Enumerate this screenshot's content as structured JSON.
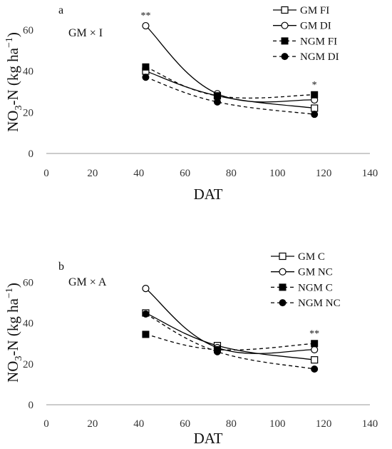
{
  "chart_data": [
    {
      "type": "line",
      "panel_letter": "a",
      "panel_label": "GM × I",
      "xlabel": "DAT",
      "ylabel": {
        "main": "NO",
        "sub": "3",
        "mid": "-N (kg ha",
        "sup": "−1",
        "end": ")"
      },
      "xlim": [
        0,
        140
      ],
      "ylim": [
        0,
        70
      ],
      "xticks": [
        0,
        20,
        40,
        60,
        80,
        100,
        120,
        140
      ],
      "yticks": [
        0,
        20,
        40,
        60
      ],
      "grid": false,
      "legend_position": "top-right",
      "x": [
        43,
        74,
        116
      ],
      "series": [
        {
          "name": "GM FI",
          "values": [
            40,
            28,
            22
          ],
          "marker": "square-open",
          "line": "solid"
        },
        {
          "name": "GM DI",
          "values": [
            62,
            29,
            26
          ],
          "marker": "circle-open",
          "line": "solid"
        },
        {
          "name": "NGM FI",
          "values": [
            42,
            28,
            28.5
          ],
          "marker": "square-filled",
          "line": "dashed"
        },
        {
          "name": "NGM DI",
          "values": [
            37,
            25,
            19
          ],
          "marker": "circle-filled",
          "line": "dashed"
        }
      ],
      "annotations": [
        {
          "text": "**",
          "x": 43,
          "y": 62
        },
        {
          "text": "*",
          "x": 116,
          "y": 28.5
        }
      ]
    },
    {
      "type": "line",
      "panel_letter": "b",
      "panel_label": "GM × A",
      "xlabel": "DAT",
      "ylabel": {
        "main": "NO",
        "sub": "3",
        "mid": "-N (kg ha",
        "sup": "−1",
        "end": ")"
      },
      "xlim": [
        0,
        140
      ],
      "ylim": [
        0,
        70
      ],
      "xticks": [
        0,
        20,
        40,
        60,
        80,
        100,
        120,
        140
      ],
      "yticks": [
        0,
        20,
        40,
        60
      ],
      "grid": false,
      "legend_position": "top-right",
      "x": [
        43,
        74,
        116
      ],
      "series": [
        {
          "name": "GM C",
          "values": [
            45,
            29,
            22
          ],
          "marker": "square-open",
          "line": "solid"
        },
        {
          "name": "GM NC",
          "values": [
            57,
            28,
            27
          ],
          "marker": "circle-open",
          "line": "solid"
        },
        {
          "name": "NGM C",
          "values": [
            34.5,
            27,
            30
          ],
          "marker": "square-filled",
          "line": "dashed"
        },
        {
          "name": "NGM NC",
          "values": [
            44.5,
            26,
            17.5
          ],
          "marker": "circle-filled",
          "line": "dashed"
        }
      ],
      "annotations": [
        {
          "text": "**",
          "x": 116,
          "y": 30
        }
      ]
    }
  ]
}
